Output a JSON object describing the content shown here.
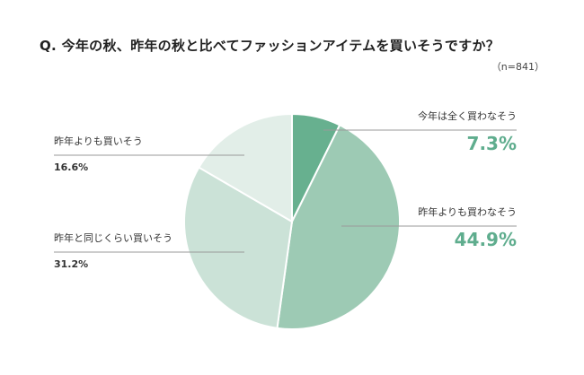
{
  "title": "Q. 今年の秋、昨年の秋と比べてファッションアイテムを買いそうですか？",
  "sample": "（n=841）",
  "colors": {
    "accent": "#5fad8e",
    "leader": "#9a9a9a",
    "divider": "#ffffff"
  },
  "chart_data": {
    "type": "pie",
    "title": "Q. 今年の秋、昨年の秋と比べてファッションアイテムを買いそうですか？",
    "n": "（n=841）",
    "slices": [
      {
        "label": "今年は全く買わなそう",
        "value": 7.3,
        "display": "7.3%",
        "color": "#67b08f",
        "side": "right"
      },
      {
        "label": "昨年よりも買わなそう",
        "value": 44.9,
        "display": "44.9%",
        "color": "#9dcab4",
        "side": "right"
      },
      {
        "label": "昨年と同じくらい買いそう",
        "value": 31.2,
        "display": "31.2%",
        "color": "#cbe2d7",
        "side": "left"
      },
      {
        "label": "昨年よりも買いそう",
        "value": 16.6,
        "display": "16.6%",
        "color": "#e2eee8",
        "side": "left"
      }
    ],
    "legend": "none"
  }
}
